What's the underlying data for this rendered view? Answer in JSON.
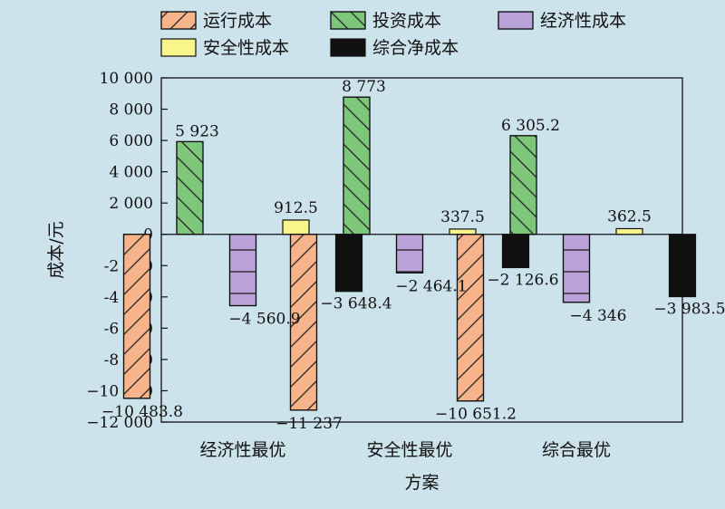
{
  "chart_data": {
    "type": "bar",
    "xlabel": "方案",
    "ylabel": "成本/元",
    "ylim": [
      -12000,
      10000
    ],
    "yticks": [
      {
        "value": 10000,
        "label": "10 000"
      },
      {
        "value": 8000,
        "label": "8 000"
      },
      {
        "value": 6000,
        "label": "6 000"
      },
      {
        "value": 4000,
        "label": "4 000"
      },
      {
        "value": 2000,
        "label": "2 000"
      },
      {
        "value": 0,
        "label": "0"
      },
      {
        "value": -2000,
        "label": "-2 000"
      },
      {
        "value": -4000,
        "label": "-4 000"
      },
      {
        "value": -6000,
        "label": "-6 000"
      },
      {
        "value": -8000,
        "label": "-8 000"
      },
      {
        "value": -10000,
        "label": "−10 000"
      },
      {
        "value": -12000,
        "label": "−12 000"
      }
    ],
    "categories": [
      "经济性最优",
      "安全性最优",
      "综合最优"
    ],
    "legend_position": "top",
    "series": [
      {
        "name": "运行成本",
        "color": "#f7b48a",
        "pattern": "diag-forward",
        "values": [
          -10483.8,
          -11237,
          -10651.2
        ],
        "labels": [
          "−10 483.8",
          "−11 237",
          "−10 651.2"
        ]
      },
      {
        "name": "投资成本",
        "color": "#7dc67a",
        "pattern": "diag-back",
        "values": [
          5923,
          8773,
          6305.2
        ],
        "labels": [
          "5 923",
          "8 773",
          "6 305.2"
        ]
      },
      {
        "name": "经济性成本",
        "color": "#b9a2d8",
        "pattern": "horizontal",
        "values": [
          -4560.9,
          -2464.1,
          -4346
        ],
        "labels": [
          "−4 560.9",
          "−2 464.1",
          "−4 346"
        ]
      },
      {
        "name": "安全性成本",
        "color": "#f8f58a",
        "pattern": "none",
        "values": [
          912.5,
          337.5,
          362.5
        ],
        "labels": [
          "912.5",
          "337.5",
          "362.5"
        ]
      },
      {
        "name": "综合净成本",
        "color": "#111111",
        "pattern": "none",
        "values": [
          -3648.4,
          -2126.6,
          -3983.5
        ],
        "labels": [
          "−3 648.4",
          "−2 126.6",
          "−3 983.5"
        ]
      }
    ]
  }
}
